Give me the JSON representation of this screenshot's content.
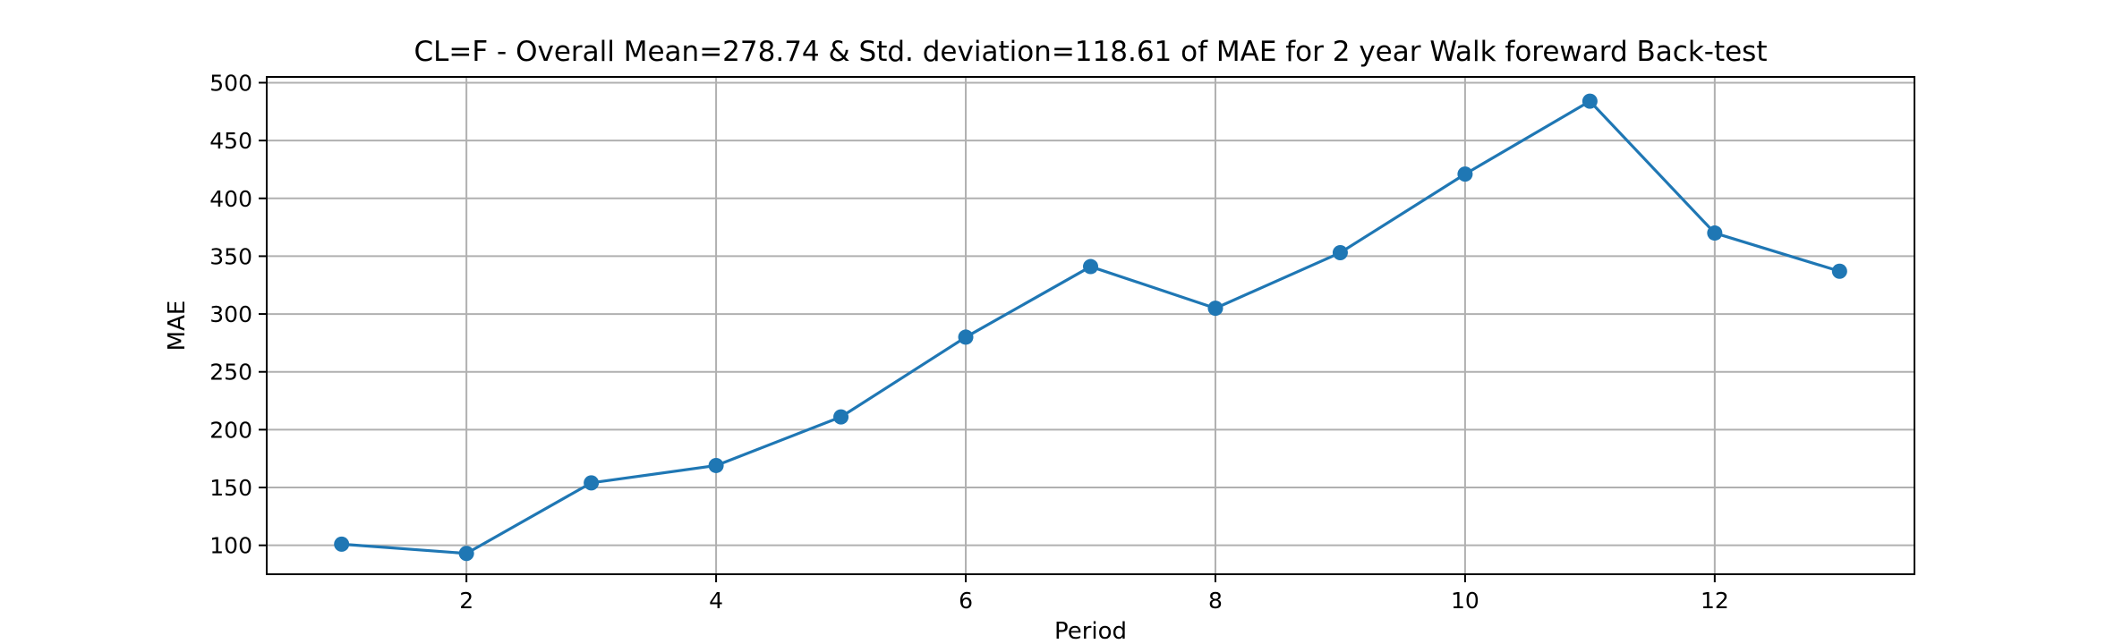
{
  "chart_data": {
    "type": "line",
    "title": "CL=F - Overall Mean=278.74 & Std. deviation=118.61 of MAE for 2 year Walk foreward Back-test",
    "xlabel": "Period",
    "ylabel": "MAE",
    "x": [
      1,
      2,
      3,
      4,
      5,
      6,
      7,
      8,
      9,
      10,
      11,
      12,
      13
    ],
    "series": [
      {
        "values": [
          101,
          93,
          154,
          169,
          211,
          280,
          341,
          305,
          353,
          421,
          484,
          370,
          337
        ],
        "color": "#1f77b4",
        "marker": "circle"
      }
    ],
    "xlim": [
      0.4,
      13.6
    ],
    "ylim": [
      75,
      505
    ],
    "xticks": [
      2,
      4,
      6,
      8,
      10,
      12
    ],
    "yticks": [
      100,
      150,
      200,
      250,
      300,
      350,
      400,
      450,
      500
    ],
    "grid": true
  }
}
